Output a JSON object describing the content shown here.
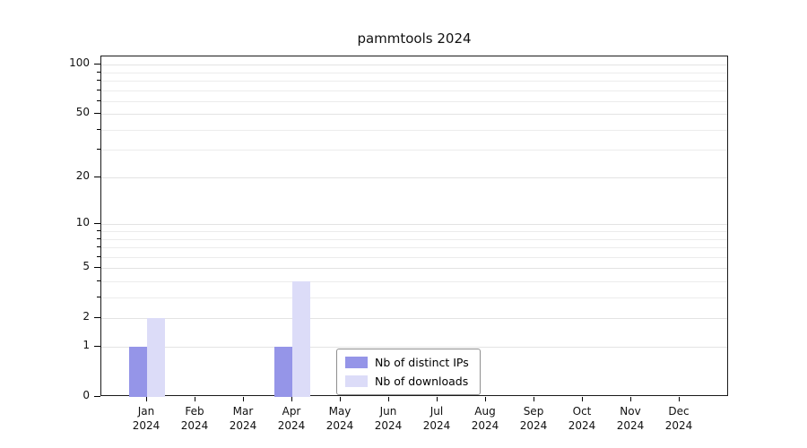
{
  "chart_data": {
    "type": "bar",
    "title": "pammtools 2024",
    "year": "2024",
    "months": [
      "Jan",
      "Feb",
      "Mar",
      "Apr",
      "May",
      "Jun",
      "Jul",
      "Aug",
      "Sep",
      "Oct",
      "Nov",
      "Dec"
    ],
    "series": [
      {
        "name": "Nb of distinct IPs",
        "color": "#9595e8",
        "values": [
          1,
          0,
          0,
          1,
          0,
          0,
          0,
          0,
          0,
          0,
          0,
          0
        ]
      },
      {
        "name": "Nb of downloads",
        "color": "#dcdcf8",
        "values": [
          2,
          0,
          0,
          4,
          0,
          0,
          0,
          0,
          0,
          0,
          0,
          0
        ]
      }
    ],
    "y_scale": "log10(value+1)",
    "y_ticks": [
      0,
      1,
      2,
      5,
      10,
      20,
      50,
      100
    ],
    "y_minor_ticks": [
      3,
      4,
      6,
      7,
      8,
      9,
      30,
      40,
      60,
      70,
      80,
      90
    ],
    "ylim": [
      0,
      100
    ],
    "grid": "horizontal",
    "legend_position": "inside-bottom-center",
    "colors": {
      "axis": "#1a1a1a",
      "major_grid": "#e3e3e3",
      "minor_grid": "#ececec"
    }
  }
}
